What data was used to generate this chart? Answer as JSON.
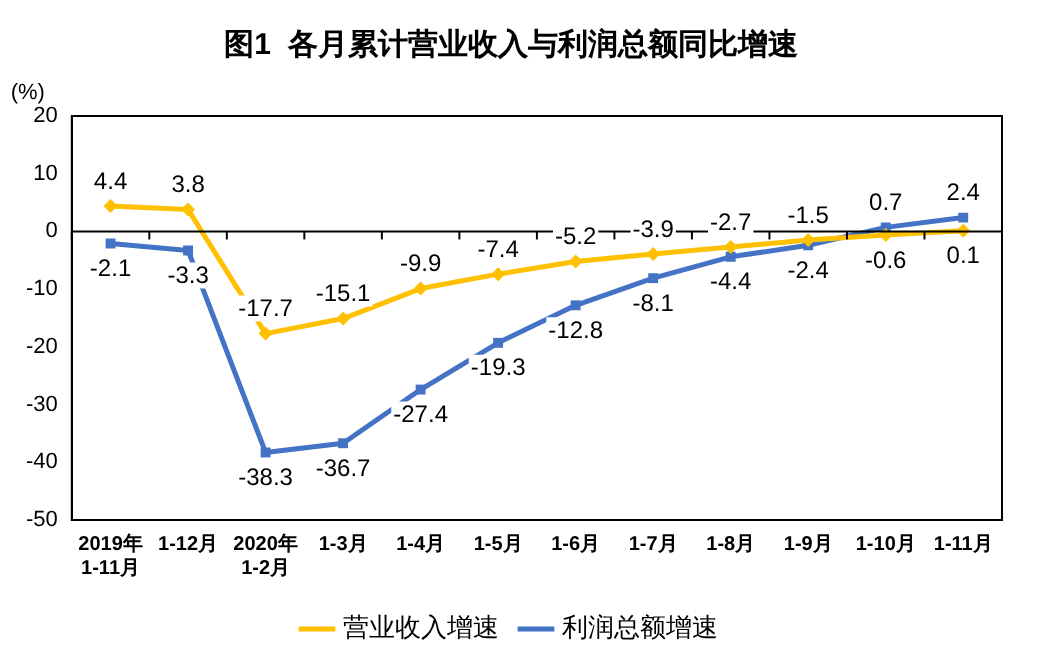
{
  "chart_data": {
    "type": "line",
    "title": "图1  各月累计营业收入与利润总额同比增速",
    "ylabel": "(%)",
    "categories": [
      "2019年\n1-11月",
      "1-12月",
      "2020年\n1-2月",
      "1-3月",
      "1-4月",
      "1-5月",
      "1-6月",
      "1-7月",
      "1-8月",
      "1-9月",
      "1-10月",
      "1-11月"
    ],
    "series": [
      {
        "name": "营业收入增速",
        "color": "#ffc000",
        "marker": "diamond",
        "values": [
          4.4,
          3.8,
          -17.7,
          -15.1,
          -9.9,
          -7.4,
          -5.2,
          -3.9,
          -2.7,
          -1.5,
          -0.6,
          0.1
        ]
      },
      {
        "name": "利润总额增速",
        "color": "#4472c4",
        "marker": "square",
        "values": [
          -2.1,
          -3.3,
          -38.3,
          -36.7,
          -27.4,
          -19.3,
          -12.8,
          -8.1,
          -4.4,
          -2.4,
          0.7,
          2.4
        ]
      }
    ],
    "ylim": [
      -50,
      20
    ],
    "yticks": [
      -50,
      -40,
      -30,
      -20,
      -10,
      0,
      10,
      20
    ],
    "grid": false,
    "legend": "bottom",
    "data_labels": true,
    "ref_lines": [
      {
        "axis": "y",
        "value": 0,
        "color": "#000000"
      }
    ]
  }
}
